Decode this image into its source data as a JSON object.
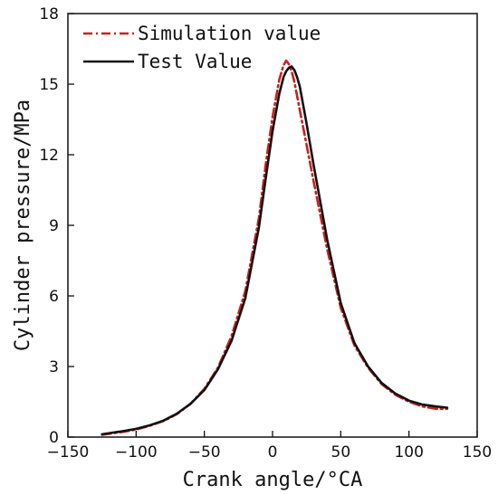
{
  "chart_data": {
    "type": "line",
    "title": "",
    "xlabel": "Crank angle/°CA",
    "ylabel": "Cylinder pressure/MPa",
    "xlim": [
      -150,
      150
    ],
    "ylim": [
      0,
      18
    ],
    "xticks": [
      -150,
      -100,
      -50,
      0,
      50,
      100,
      150
    ],
    "yticks": [
      0,
      3,
      6,
      9,
      12,
      15,
      18
    ],
    "xtick_labels": [
      "−150",
      "−100",
      "−50",
      "0",
      "50",
      "100",
      "150"
    ],
    "ytick_labels": [
      "0",
      "3",
      "6",
      "9",
      "12",
      "15",
      "18"
    ],
    "grid": false,
    "legend_position": "top-left",
    "series": [
      {
        "name": "Simulation value",
        "color": "#cc1f1f",
        "style": "dash-dot",
        "x": [
          -125,
          -110,
          -100,
          -90,
          -80,
          -70,
          -60,
          -50,
          -40,
          -30,
          -20,
          -10,
          -5,
          0,
          5,
          8,
          10,
          12,
          14,
          16,
          18,
          20,
          25,
          30,
          40,
          50,
          60,
          70,
          80,
          90,
          100,
          110,
          120,
          128
        ],
        "y": [
          0.1,
          0.22,
          0.32,
          0.48,
          0.68,
          0.98,
          1.42,
          2.05,
          2.95,
          4.3,
          6.2,
          9.3,
          11.6,
          13.6,
          15.2,
          15.8,
          16.0,
          15.85,
          15.55,
          15.1,
          14.5,
          13.9,
          12.4,
          10.9,
          8.0,
          5.5,
          3.9,
          2.95,
          2.25,
          1.8,
          1.5,
          1.3,
          1.2,
          1.2
        ]
      },
      {
        "name": "Test Value",
        "color": "#111111",
        "style": "solid",
        "x": [
          -125,
          -110,
          -100,
          -90,
          -80,
          -70,
          -60,
          -50,
          -40,
          -30,
          -20,
          -10,
          -5,
          0,
          5,
          8,
          10,
          12,
          14,
          16,
          18,
          20,
          25,
          30,
          40,
          50,
          60,
          70,
          80,
          90,
          100,
          110,
          120,
          128
        ],
        "y": [
          0.12,
          0.25,
          0.35,
          0.5,
          0.7,
          1.0,
          1.42,
          2.0,
          2.88,
          4.1,
          5.9,
          8.9,
          11.0,
          13.0,
          14.6,
          15.3,
          15.55,
          15.7,
          15.75,
          15.6,
          15.3,
          14.9,
          13.3,
          11.6,
          8.4,
          5.7,
          4.0,
          3.0,
          2.3,
          1.85,
          1.55,
          1.38,
          1.3,
          1.25
        ]
      }
    ]
  }
}
